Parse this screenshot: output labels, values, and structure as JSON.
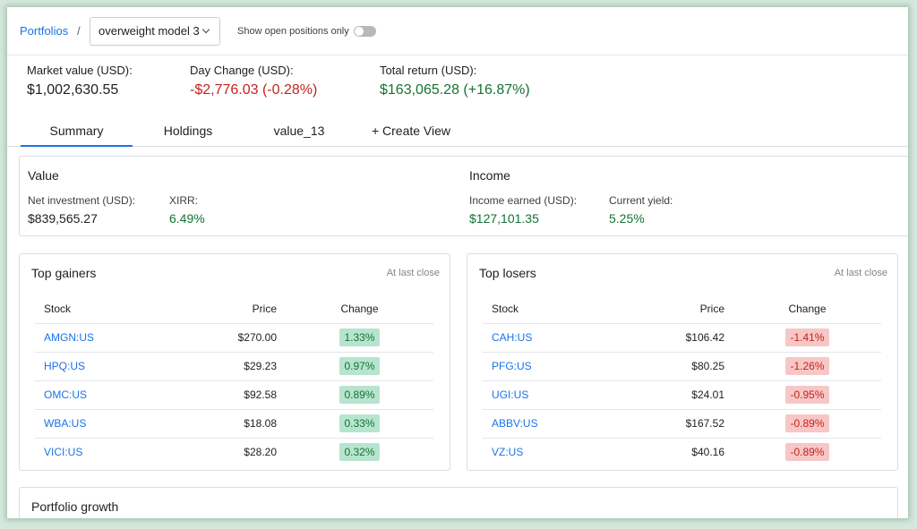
{
  "header": {
    "breadcrumb": "Portfolios",
    "separator": "/",
    "model_select": "overweight model 3",
    "toggle_label": "Show open positions only"
  },
  "metrics": [
    {
      "label": "Market value (USD):",
      "value": "$1,002,630.55",
      "tone": "neutral"
    },
    {
      "label": "Day Change (USD):",
      "value": "-$2,776.03 (-0.28%)",
      "tone": "negative"
    },
    {
      "label": "Total return (USD):",
      "value": "$163,065.28 (+16.87%)",
      "tone": "positive"
    }
  ],
  "tabs": [
    "Summary",
    "Holdings",
    "value_13",
    "+ Create View"
  ],
  "value_card": {
    "value_title": "Value",
    "net_investment_label": "Net investment (USD):",
    "net_investment": "$839,565.27",
    "xirr_label": "XIRR:",
    "xirr": "6.49%",
    "income_title": "Income",
    "income_earned_label": "Income earned (USD):",
    "income_earned": "$127,101.35",
    "current_yield_label": "Current yield:",
    "current_yield": "5.25%"
  },
  "gainers": {
    "title": "Top gainers",
    "note": "At last close",
    "columns": [
      "Stock",
      "Price",
      "Change"
    ],
    "rows": [
      {
        "stock": "AMGN:US",
        "price": "$270.00",
        "change": "1.33%"
      },
      {
        "stock": "HPQ:US",
        "price": "$29.23",
        "change": "0.97%"
      },
      {
        "stock": "OMC:US",
        "price": "$92.58",
        "change": "0.89%"
      },
      {
        "stock": "WBA:US",
        "price": "$18.08",
        "change": "0.33%"
      },
      {
        "stock": "VICI:US",
        "price": "$28.20",
        "change": "0.32%"
      }
    ]
  },
  "losers": {
    "title": "Top losers",
    "note": "At last close",
    "columns": [
      "Stock",
      "Price",
      "Change"
    ],
    "rows": [
      {
        "stock": "CAH:US",
        "price": "$106.42",
        "change": "-1.41%"
      },
      {
        "stock": "PFG:US",
        "price": "$80.25",
        "change": "-1.26%"
      },
      {
        "stock": "UGI:US",
        "price": "$24.01",
        "change": "-0.95%"
      },
      {
        "stock": "ABBV:US",
        "price": "$167.52",
        "change": "-0.89%"
      },
      {
        "stock": "VZ:US",
        "price": "$40.16",
        "change": "-0.89%"
      }
    ]
  },
  "growth": {
    "title": "Portfolio growth"
  },
  "colors": {
    "accent": "#1a73e8",
    "positive": "#137333",
    "negative": "#c5221f"
  }
}
